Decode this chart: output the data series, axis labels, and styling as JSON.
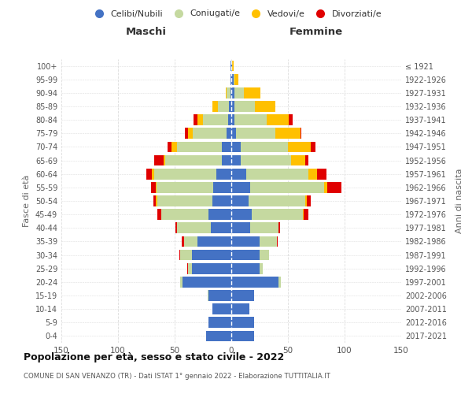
{
  "age_groups": [
    "0-4",
    "5-9",
    "10-14",
    "15-19",
    "20-24",
    "25-29",
    "30-34",
    "35-39",
    "40-44",
    "45-49",
    "50-54",
    "55-59",
    "60-64",
    "65-69",
    "70-74",
    "75-79",
    "80-84",
    "85-89",
    "90-94",
    "95-99",
    "100+"
  ],
  "birth_years": [
    "2017-2021",
    "2012-2016",
    "2007-2011",
    "2002-2006",
    "1997-2001",
    "1992-1996",
    "1987-1991",
    "1982-1986",
    "1977-1981",
    "1972-1976",
    "1967-1971",
    "1962-1966",
    "1957-1961",
    "1952-1956",
    "1947-1951",
    "1942-1946",
    "1937-1941",
    "1932-1936",
    "1927-1931",
    "1922-1926",
    "≤ 1921"
  ],
  "maschi": {
    "celibe": [
      22,
      20,
      17,
      20,
      43,
      35,
      35,
      30,
      18,
      20,
      17,
      16,
      13,
      8,
      8,
      4,
      3,
      2,
      1,
      1,
      1
    ],
    "coniugato": [
      0,
      0,
      0,
      1,
      2,
      3,
      10,
      12,
      30,
      42,
      48,
      50,
      55,
      50,
      40,
      30,
      22,
      10,
      3,
      0,
      0
    ],
    "vedovo": [
      0,
      0,
      0,
      0,
      0,
      0,
      0,
      0,
      0,
      0,
      2,
      1,
      2,
      2,
      5,
      4,
      5,
      5,
      1,
      0,
      0
    ],
    "divorziato": [
      0,
      0,
      0,
      0,
      0,
      1,
      1,
      2,
      1,
      3,
      2,
      4,
      5,
      8,
      3,
      3,
      3,
      0,
      0,
      0,
      0
    ]
  },
  "femmine": {
    "nubile": [
      20,
      20,
      16,
      20,
      42,
      25,
      25,
      25,
      17,
      18,
      15,
      17,
      13,
      8,
      8,
      4,
      3,
      3,
      3,
      2,
      1
    ],
    "coniugata": [
      0,
      0,
      0,
      0,
      2,
      3,
      8,
      15,
      25,
      45,
      50,
      65,
      55,
      45,
      42,
      35,
      28,
      18,
      8,
      1,
      0
    ],
    "vedova": [
      0,
      0,
      0,
      0,
      0,
      0,
      0,
      0,
      0,
      1,
      2,
      3,
      8,
      12,
      20,
      22,
      20,
      18,
      15,
      3,
      1
    ],
    "divorziata": [
      0,
      0,
      0,
      0,
      0,
      0,
      0,
      1,
      1,
      4,
      3,
      12,
      8,
      3,
      4,
      1,
      3,
      0,
      0,
      0,
      0
    ]
  },
  "colors": {
    "celibe": "#4472c4",
    "coniugato": "#c5d9a0",
    "vedovo": "#ffc000",
    "divorziato": "#e00000"
  },
  "title": "Popolazione per età, sesso e stato civile - 2022",
  "subtitle": "COMUNE DI SAN VENANZO (TR) - Dati ISTAT 1° gennaio 2022 - Elaborazione TUTTITALIA.IT",
  "xlabel_left": "Maschi",
  "xlabel_right": "Femmine",
  "ylabel_left": "Fasce di età",
  "ylabel_right": "Anni di nascita",
  "xlim": 150,
  "bg_color": "#ffffff",
  "grid_color": "#cccccc"
}
